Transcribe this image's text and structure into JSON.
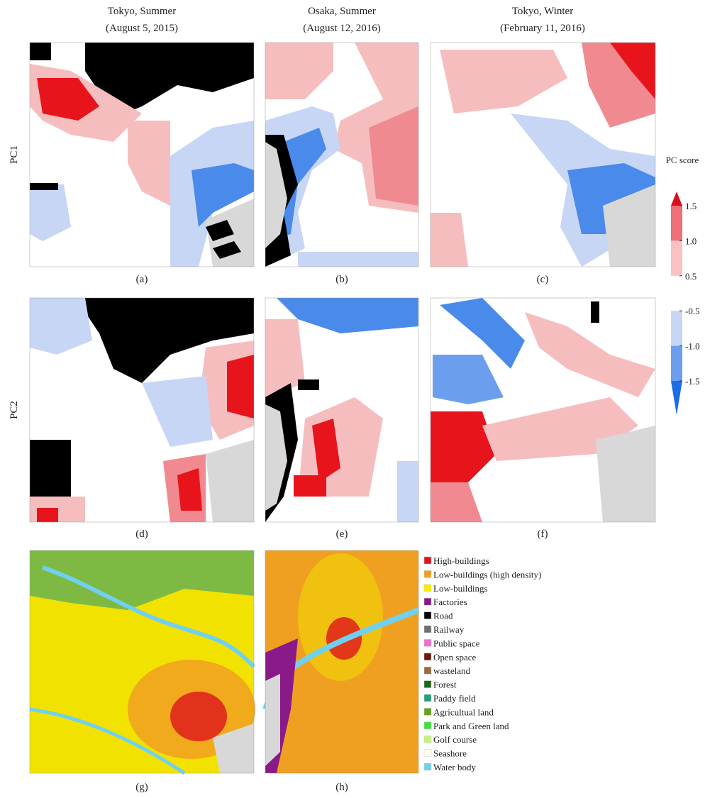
{
  "columns": [
    {
      "title": "Tokyo, Summer",
      "date": "(August 5, 2015)"
    },
    {
      "title": "Osaka, Summer",
      "date": "(August 12, 2016)"
    },
    {
      "title": "Tokyo, Winter",
      "date": "(February 11, 2016)"
    }
  ],
  "rows": [
    "PC1",
    "PC2"
  ],
  "panel_labels": [
    "(a)",
    "(b)",
    "(c)",
    "(d)",
    "(e)",
    "(f)",
    "(g)",
    "(h)"
  ],
  "colorbar": {
    "title": "PC score",
    "ticks": [
      1.5,
      {
        "value": 1,
        "label": "1.0"
      },
      0.5,
      -0.5,
      {
        "value": -1,
        "label": "-1.0"
      },
      -1.5
    ],
    "colors": [
      "#d8101a",
      "#ee6f76",
      "#f8c2c5",
      "#ffffff",
      "#c6d6f4",
      "#6b9fee",
      "#1d6ee4"
    ]
  },
  "land_use_legend": [
    {
      "name": "High-buildings",
      "color": "#e0141c"
    },
    {
      "name": "Low-buildings (high density)",
      "color": "#f0a020"
    },
    {
      "name": "Low-buildings",
      "color": "#f6ee00"
    },
    {
      "name": "Factories",
      "color": "#8a1a8a"
    },
    {
      "name": "Road",
      "color": "#000000"
    },
    {
      "name": "Railway",
      "color": "#707070"
    },
    {
      "name": "Public space",
      "color": "#f070d0"
    },
    {
      "name": "Open space",
      "color": "#6a1a0a"
    },
    {
      "name": "wasteland",
      "color": "#9a6a40"
    },
    {
      "name": "Forest",
      "color": "#1a6a1a"
    },
    {
      "name": "Paddy field",
      "color": "#20a080"
    },
    {
      "name": "Agricultual land",
      "color": "#6aa020"
    },
    {
      "name": "Park and Green land",
      "color": "#40e040"
    },
    {
      "name": "Golf course",
      "color": "#c8f080"
    },
    {
      "name": "Seashore",
      "color": "#fffff0"
    },
    {
      "name": "Water body",
      "color": "#70d0f0"
    }
  ]
}
